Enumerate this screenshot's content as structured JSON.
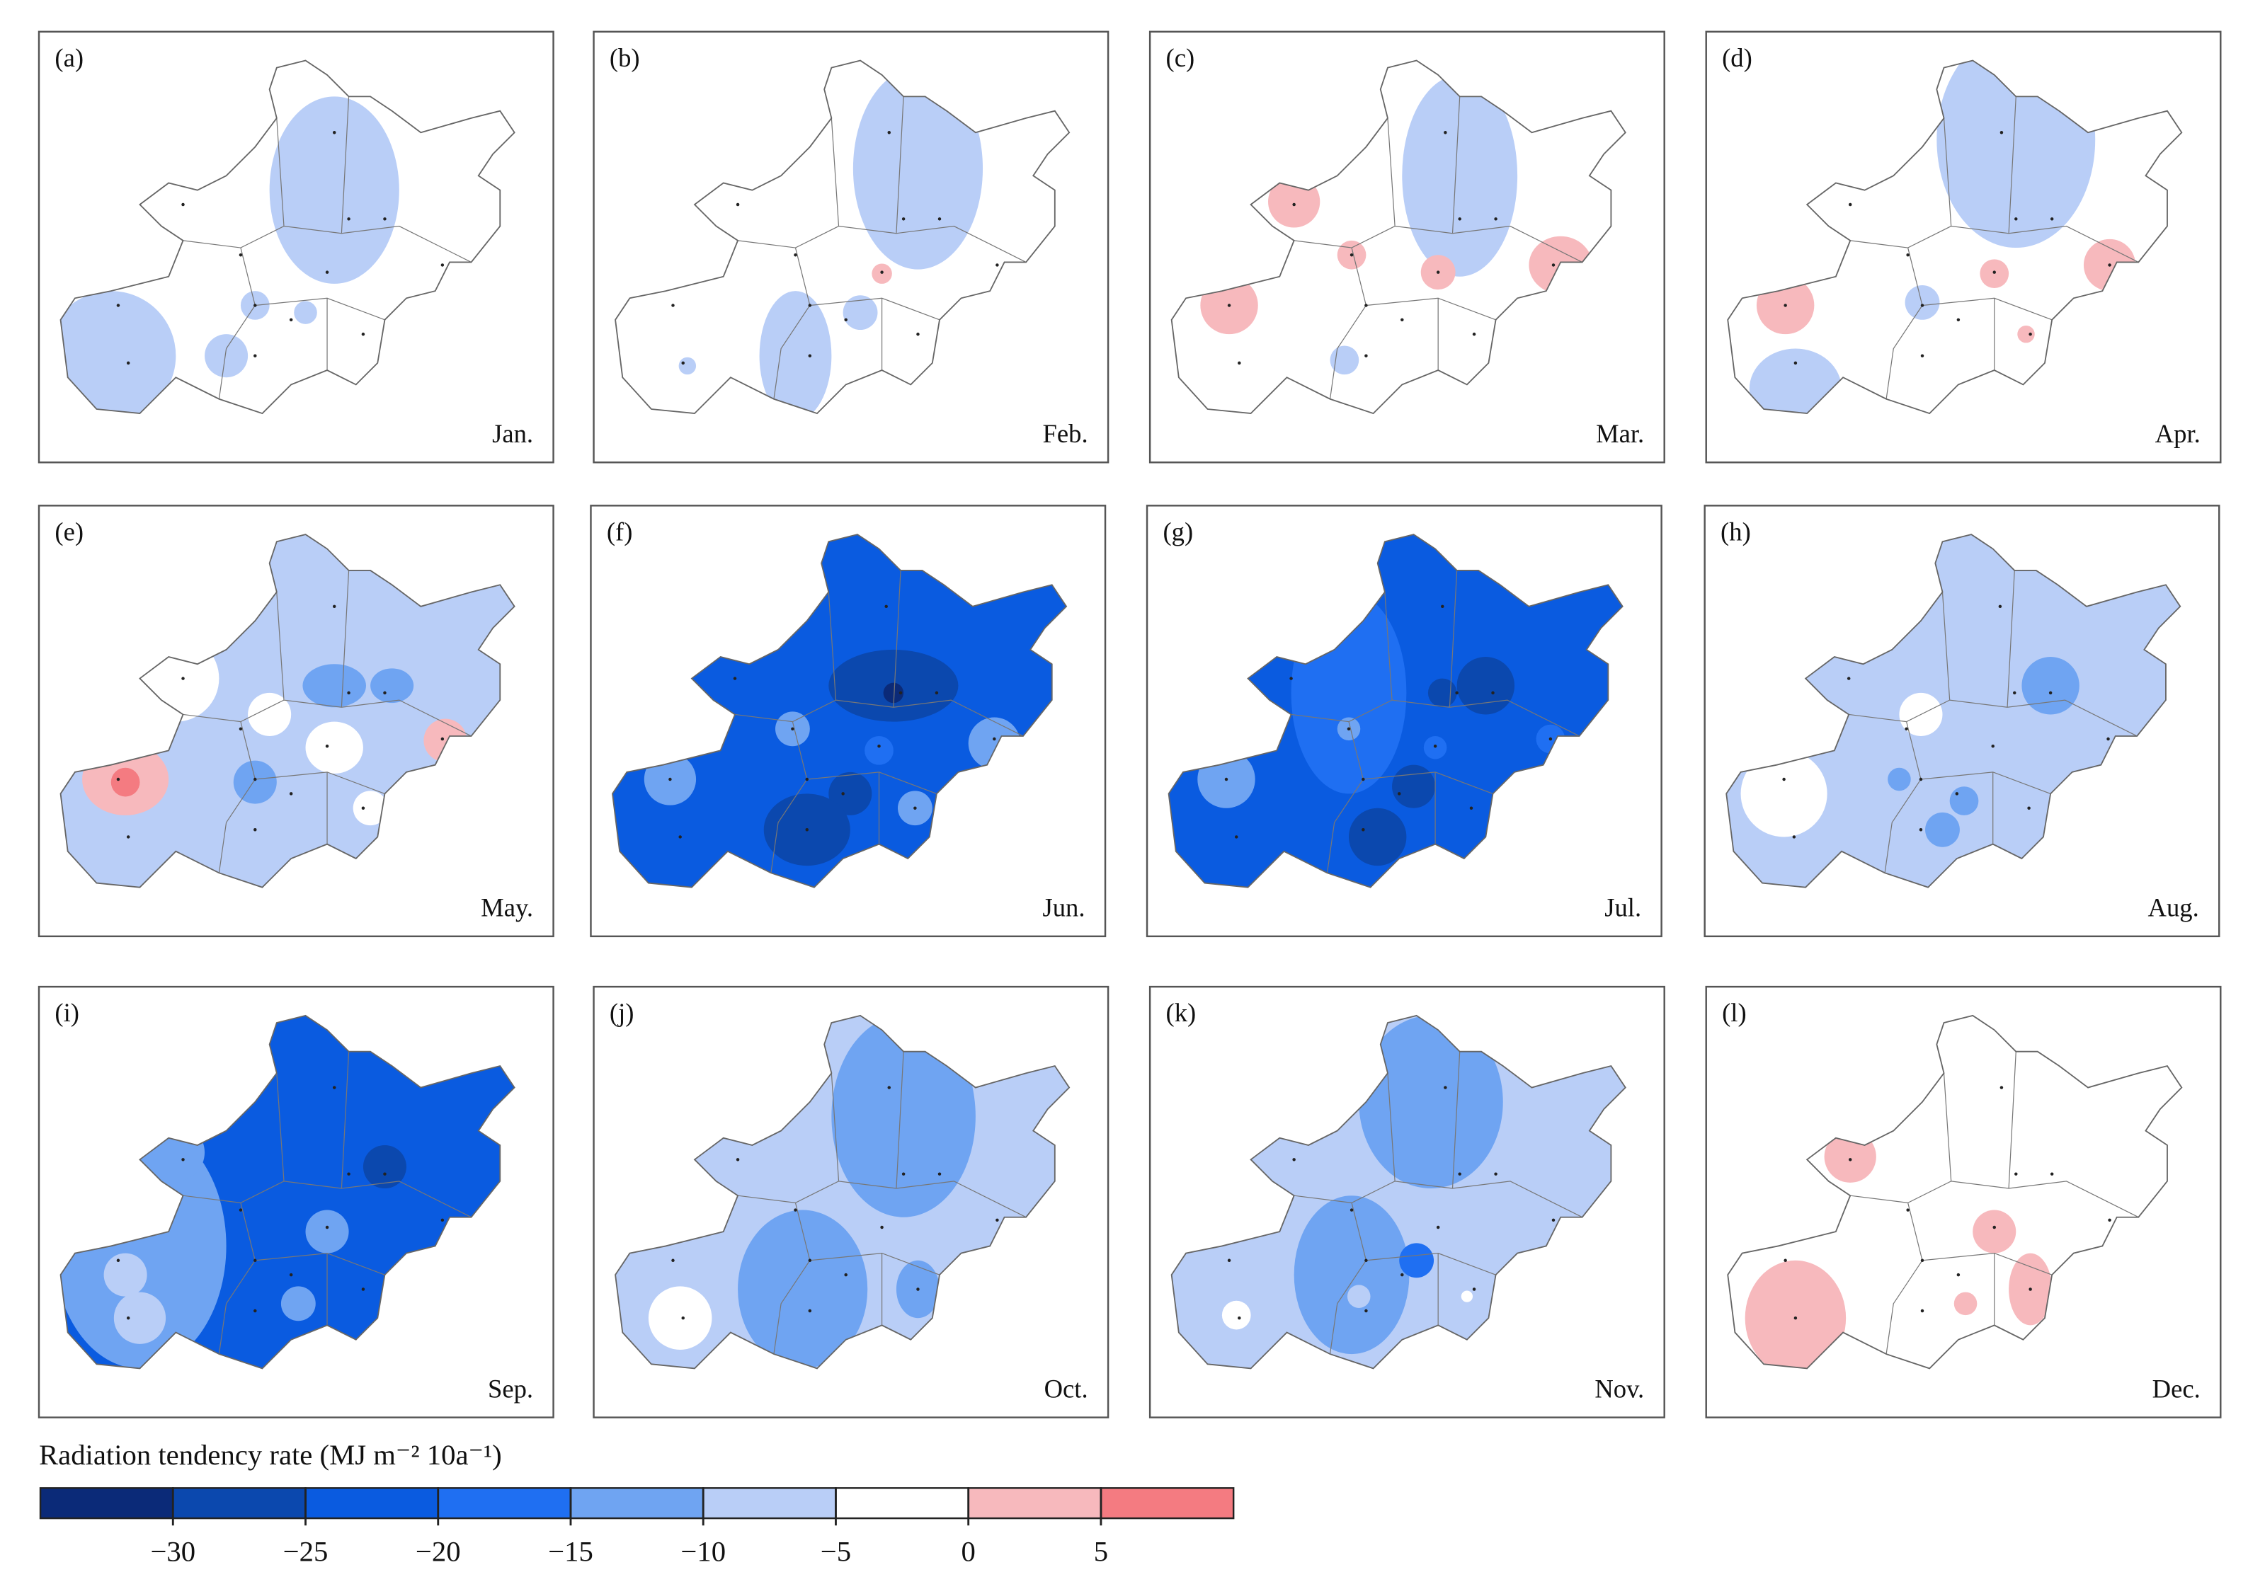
{
  "panels": [
    {
      "letter": "(a)",
      "month": "Jan."
    },
    {
      "letter": "(b)",
      "month": "Feb."
    },
    {
      "letter": "(c)",
      "month": "Mar."
    },
    {
      "letter": "(d)",
      "month": "Apr."
    },
    {
      "letter": "(e)",
      "month": "May."
    },
    {
      "letter": "(f)",
      "month": "Jun."
    },
    {
      "letter": "(g)",
      "month": "Jul."
    },
    {
      "letter": "(h)",
      "month": "Aug."
    },
    {
      "letter": "(i)",
      "month": "Sep."
    },
    {
      "letter": "(j)",
      "month": "Oct."
    },
    {
      "letter": "(k)",
      "month": "Nov."
    },
    {
      "letter": "(l)",
      "month": "Dec."
    }
  ],
  "colorbar": {
    "title": "Radiation tendency rate (MJ m⁻² 10a⁻¹)",
    "lim": [
      -35,
      10
    ],
    "colors": [
      "#0b2a78",
      "#0b48ae",
      "#0a5be0",
      "#1f6ff2",
      "#6fa4f2",
      "#b9cef7",
      "#ffffff",
      "#f7b9bd",
      "#f47b81"
    ],
    "ticks": [
      {
        "value": -30,
        "label": "−30"
      },
      {
        "value": -25,
        "label": "−25"
      },
      {
        "value": -20,
        "label": "−20"
      },
      {
        "value": -15,
        "label": "−15"
      },
      {
        "value": -10,
        "label": "−10"
      },
      {
        "value": -5,
        "label": "−5"
      },
      0,
      5
    ]
  }
}
